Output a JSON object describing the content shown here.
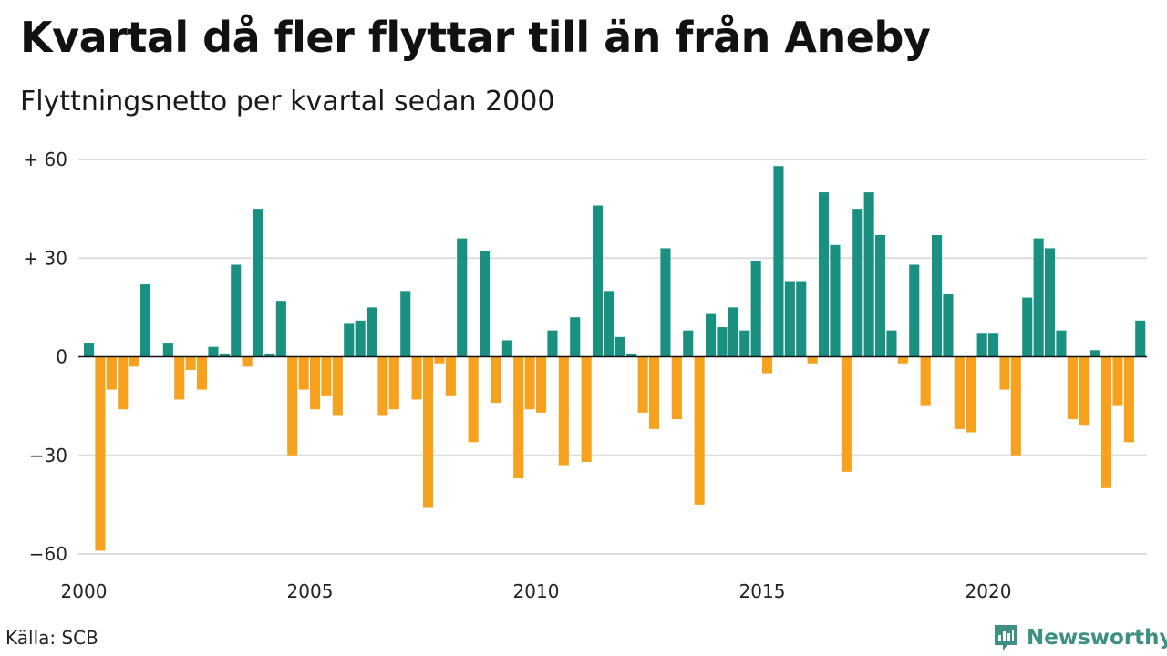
{
  "header": {
    "title": "Kvartal då fler flyttar till än från Aneby",
    "subtitle": "Flyttningsnetto per kvartal sedan 2000"
  },
  "footer": {
    "source": "Källa: SCB",
    "brand": "Newsworthy"
  },
  "colors": {
    "positive": "#1a9080",
    "negative": "#f6a21e",
    "grid": "#dddddd",
    "brand": "#3e8f84"
  },
  "chart_data": {
    "type": "bar",
    "x_start": 2000,
    "x_end": 2023.75,
    "ylim": [
      -60,
      60
    ],
    "yticks": [
      {
        "value": 60,
        "label": "+ 60"
      },
      {
        "value": 30,
        "label": "+ 30"
      },
      {
        "value": 0,
        "label": "0"
      },
      {
        "value": -30,
        "label": "−30"
      },
      {
        "value": -60,
        "label": "−60"
      }
    ],
    "xticks": [
      {
        "value": 2000,
        "label": "2000"
      },
      {
        "value": 2005,
        "label": "2005"
      },
      {
        "value": 2010,
        "label": "2010"
      },
      {
        "value": 2015,
        "label": "2015"
      },
      {
        "value": 2020,
        "label": "2020"
      }
    ],
    "values": [
      4,
      -59,
      -10,
      -16,
      -3,
      22,
      0,
      4,
      -13,
      -4,
      -10,
      3,
      1,
      28,
      -3,
      45,
      1,
      17,
      -30,
      -10,
      -16,
      -12,
      -18,
      10,
      11,
      15,
      -18,
      -16,
      20,
      -13,
      -46,
      -2,
      -12,
      36,
      -26,
      32,
      -14,
      5,
      -37,
      -16,
      -17,
      8,
      -33,
      12,
      -32,
      46,
      20,
      6,
      1,
      -17,
      -22,
      33,
      -19,
      8,
      -45,
      13,
      9,
      15,
      8,
      29,
      -5,
      58,
      23,
      23,
      -2,
      50,
      34,
      -35,
      45,
      50,
      37,
      8,
      -2,
      28,
      -15,
      37,
      19,
      -22,
      -23,
      7,
      7,
      -10,
      -30,
      18,
      36,
      33,
      8,
      -19,
      -21,
      2,
      -40,
      -15,
      -26,
      11
    ]
  }
}
